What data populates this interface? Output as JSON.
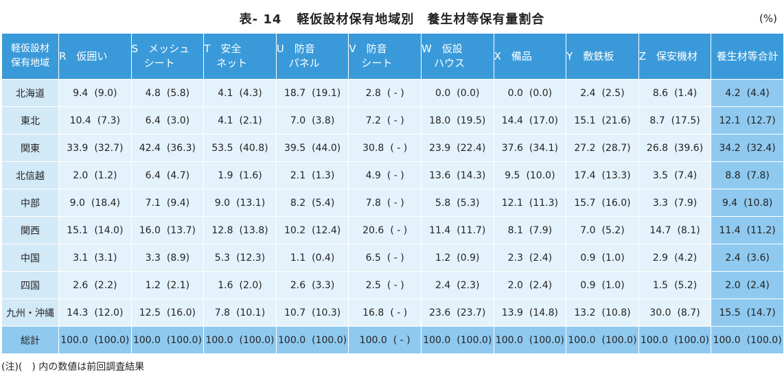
{
  "title": {
    "number": "表- 14",
    "text": "軽仮設材保有地域別　養生材等保有量割合"
  },
  "unit": "(%)",
  "header": {
    "corner_line1": "軽仮設材",
    "corner_line2": "保有地域",
    "columns": [
      {
        "line1": "R　仮囲い",
        "line2": ""
      },
      {
        "line1": "S　メッシュ",
        "line2": "シート"
      },
      {
        "line1": "T　安全",
        "line2": "ネット"
      },
      {
        "line1": "U　防音",
        "line2": "パネル"
      },
      {
        "line1": "V　防音",
        "line2": "シート"
      },
      {
        "line1": "W　仮設",
        "line2": "ハウス"
      },
      {
        "line1": "X　備品",
        "line2": ""
      },
      {
        "line1": "Y　敷鉄板",
        "line2": ""
      },
      {
        "line1": "Z　保安機材",
        "line2": ""
      },
      {
        "line1": "養生材等合計",
        "line2": ""
      }
    ]
  },
  "rows": [
    {
      "region": "北海道",
      "cells": [
        {
          "cur": "9.4",
          "prev": "(9.0)"
        },
        {
          "cur": "4.8",
          "prev": "(5.8)"
        },
        {
          "cur": "4.1",
          "prev": "(4.3)"
        },
        {
          "cur": "18.7",
          "prev": "(19.1)"
        },
        {
          "cur": "2.8",
          "prev": "( - )"
        },
        {
          "cur": "0.0",
          "prev": "(0.0)"
        },
        {
          "cur": "0.0",
          "prev": "(0.0)"
        },
        {
          "cur": "2.4",
          "prev": "(2.5)"
        },
        {
          "cur": "8.6",
          "prev": "(1.4)"
        },
        {
          "cur": "4.2",
          "prev": "(4.4)"
        }
      ]
    },
    {
      "region": "東北",
      "cells": [
        {
          "cur": "10.4",
          "prev": "(7.3)"
        },
        {
          "cur": "6.4",
          "prev": "(3.0)"
        },
        {
          "cur": "4.1",
          "prev": "(2.1)"
        },
        {
          "cur": "7.0",
          "prev": "(3.8)"
        },
        {
          "cur": "7.2",
          "prev": "( - )"
        },
        {
          "cur": "18.0",
          "prev": "(19.5)"
        },
        {
          "cur": "14.4",
          "prev": "(17.0)"
        },
        {
          "cur": "15.1",
          "prev": "(21.6)"
        },
        {
          "cur": "8.7",
          "prev": "(17.5)"
        },
        {
          "cur": "12.1",
          "prev": "(12.7)"
        }
      ]
    },
    {
      "region": "関東",
      "cells": [
        {
          "cur": "33.9",
          "prev": "(32.7)"
        },
        {
          "cur": "42.4",
          "prev": "(36.3)"
        },
        {
          "cur": "53.5",
          "prev": "(40.8)"
        },
        {
          "cur": "39.5",
          "prev": "(44.0)"
        },
        {
          "cur": "30.8",
          "prev": "( - )"
        },
        {
          "cur": "23.9",
          "prev": "(22.4)"
        },
        {
          "cur": "37.6",
          "prev": "(34.1)"
        },
        {
          "cur": "27.2",
          "prev": "(28.7)"
        },
        {
          "cur": "26.8",
          "prev": "(39.6)"
        },
        {
          "cur": "34.2",
          "prev": "(32.4)"
        }
      ]
    },
    {
      "region": "北信越",
      "cells": [
        {
          "cur": "2.0",
          "prev": "(1.2)"
        },
        {
          "cur": "6.4",
          "prev": "(4.7)"
        },
        {
          "cur": "1.9",
          "prev": "(1.6)"
        },
        {
          "cur": "2.1",
          "prev": "(1.3)"
        },
        {
          "cur": "4.9",
          "prev": "( - )"
        },
        {
          "cur": "13.6",
          "prev": "(14.3)"
        },
        {
          "cur": "9.5",
          "prev": "(10.0)"
        },
        {
          "cur": "17.4",
          "prev": "(13.3)"
        },
        {
          "cur": "3.5",
          "prev": "(7.4)"
        },
        {
          "cur": "8.8",
          "prev": "(7.8)"
        }
      ]
    },
    {
      "region": "中部",
      "cells": [
        {
          "cur": "9.0",
          "prev": "(18.4)"
        },
        {
          "cur": "7.1",
          "prev": "(9.4)"
        },
        {
          "cur": "9.0",
          "prev": "(13.1)"
        },
        {
          "cur": "8.2",
          "prev": "(5.4)"
        },
        {
          "cur": "7.8",
          "prev": "( - )"
        },
        {
          "cur": "5.8",
          "prev": "(5.3)"
        },
        {
          "cur": "12.1",
          "prev": "(11.3)"
        },
        {
          "cur": "15.7",
          "prev": "(16.0)"
        },
        {
          "cur": "3.3",
          "prev": "(7.9)"
        },
        {
          "cur": "9.4",
          "prev": "(10.8)"
        }
      ]
    },
    {
      "region": "関西",
      "cells": [
        {
          "cur": "15.1",
          "prev": "(14.0)"
        },
        {
          "cur": "16.0",
          "prev": "(13.7)"
        },
        {
          "cur": "12.8",
          "prev": "(13.8)"
        },
        {
          "cur": "10.2",
          "prev": "(12.4)"
        },
        {
          "cur": "20.6",
          "prev": "( - )"
        },
        {
          "cur": "11.4",
          "prev": "(11.7)"
        },
        {
          "cur": "8.1",
          "prev": "(7.9)"
        },
        {
          "cur": "7.0",
          "prev": "(5.2)"
        },
        {
          "cur": "14.7",
          "prev": "(8.1)"
        },
        {
          "cur": "11.4",
          "prev": "(11.2)"
        }
      ]
    },
    {
      "region": "中国",
      "cells": [
        {
          "cur": "3.1",
          "prev": "(3.1)"
        },
        {
          "cur": "3.3",
          "prev": "(8.9)"
        },
        {
          "cur": "5.3",
          "prev": "(12.3)"
        },
        {
          "cur": "1.1",
          "prev": "(0.4)"
        },
        {
          "cur": "6.5",
          "prev": "( - )"
        },
        {
          "cur": "1.2",
          "prev": "(0.9)"
        },
        {
          "cur": "2.3",
          "prev": "(2.4)"
        },
        {
          "cur": "0.9",
          "prev": "(1.0)"
        },
        {
          "cur": "2.9",
          "prev": "(4.2)"
        },
        {
          "cur": "2.4",
          "prev": "(3.6)"
        }
      ]
    },
    {
      "region": "四国",
      "cells": [
        {
          "cur": "2.6",
          "prev": "(2.2)"
        },
        {
          "cur": "1.2",
          "prev": "(2.1)"
        },
        {
          "cur": "1.6",
          "prev": "(2.0)"
        },
        {
          "cur": "2.6",
          "prev": "(3.3)"
        },
        {
          "cur": "2.5",
          "prev": "( - )"
        },
        {
          "cur": "2.4",
          "prev": "(2.3)"
        },
        {
          "cur": "2.0",
          "prev": "(2.4)"
        },
        {
          "cur": "0.9",
          "prev": "(1.0)"
        },
        {
          "cur": "1.5",
          "prev": "(5.2)"
        },
        {
          "cur": "2.0",
          "prev": "(2.4)"
        }
      ]
    },
    {
      "region": "九州・沖縄",
      "cells": [
        {
          "cur": "14.3",
          "prev": "(12.0)"
        },
        {
          "cur": "12.5",
          "prev": "(16.0)"
        },
        {
          "cur": "7.8",
          "prev": "(10.1)"
        },
        {
          "cur": "10.7",
          "prev": "(10.3)"
        },
        {
          "cur": "16.8",
          "prev": "( - )"
        },
        {
          "cur": "23.6",
          "prev": "(23.7)"
        },
        {
          "cur": "13.9",
          "prev": "(14.8)"
        },
        {
          "cur": "13.2",
          "prev": "(10.8)"
        },
        {
          "cur": "30.0",
          "prev": "(8.7)"
        },
        {
          "cur": "15.5",
          "prev": "(14.7)"
        }
      ]
    },
    {
      "region": "総計",
      "cells": [
        {
          "cur": "100.0",
          "prev": "(100.0)"
        },
        {
          "cur": "100.0",
          "prev": "(100.0)"
        },
        {
          "cur": "100.0",
          "prev": "(100.0)"
        },
        {
          "cur": "100.0",
          "prev": "(100.0)"
        },
        {
          "cur": "100.0",
          "prev": "( - )"
        },
        {
          "cur": "100.0",
          "prev": "(100.0)"
        },
        {
          "cur": "100.0",
          "prev": "(100.0)"
        },
        {
          "cur": "100.0",
          "prev": "(100.0)"
        },
        {
          "cur": "100.0",
          "prev": "(100.0)"
        },
        {
          "cur": "100.0",
          "prev": "(100.0)"
        }
      ]
    }
  ],
  "note": "(注)(　) 内の数値は前回調査結果",
  "colors": {
    "header_bg": "#3a9ad9",
    "cell_bg": "#e4f2fb",
    "region_bg": "#d2e9f7",
    "total_bg": "#8fc9ef"
  }
}
